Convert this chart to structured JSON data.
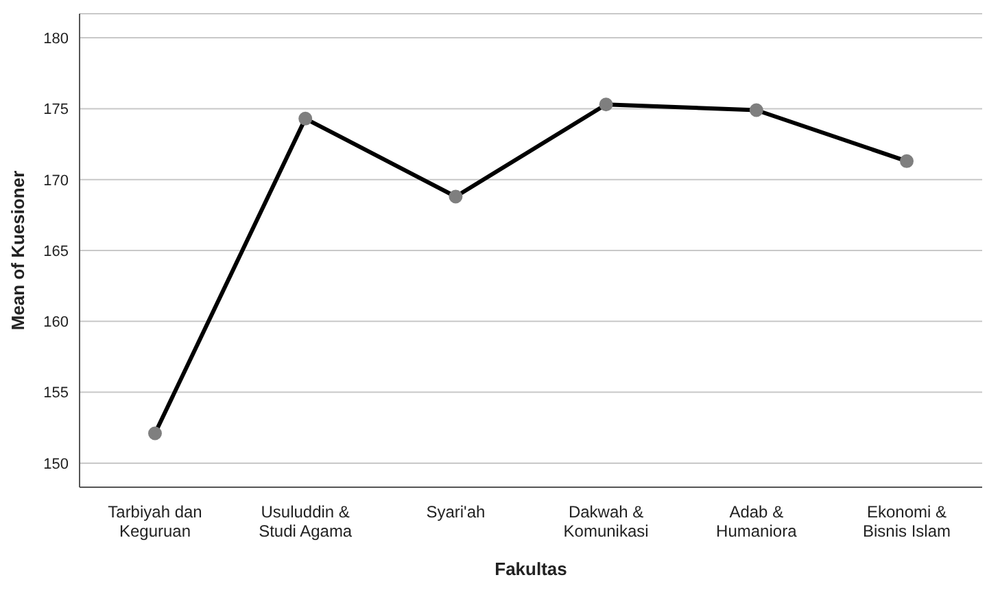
{
  "chart_data": {
    "type": "line",
    "xlabel": "Fakultas",
    "ylabel": "Mean of Kuesioner",
    "categories": [
      "Tarbiyah dan Keguruan",
      "Usuluddin & Studi Agama",
      "Syari'ah",
      "Dakwah & Komunikasi",
      "Adab & Humaniora",
      "Ekonomi & Bisnis Islam"
    ],
    "series": [
      {
        "color": "#000000",
        "values": [
          152.1,
          174.3,
          168.8,
          175.3,
          174.9,
          171.3
        ]
      }
    ],
    "ylim": [
      148.3,
      181.7
    ],
    "yticks": [
      150,
      155,
      160,
      165,
      170,
      175,
      180
    ],
    "grid": "y",
    "marker": "circle",
    "line_style": "solid",
    "legend": false
  }
}
